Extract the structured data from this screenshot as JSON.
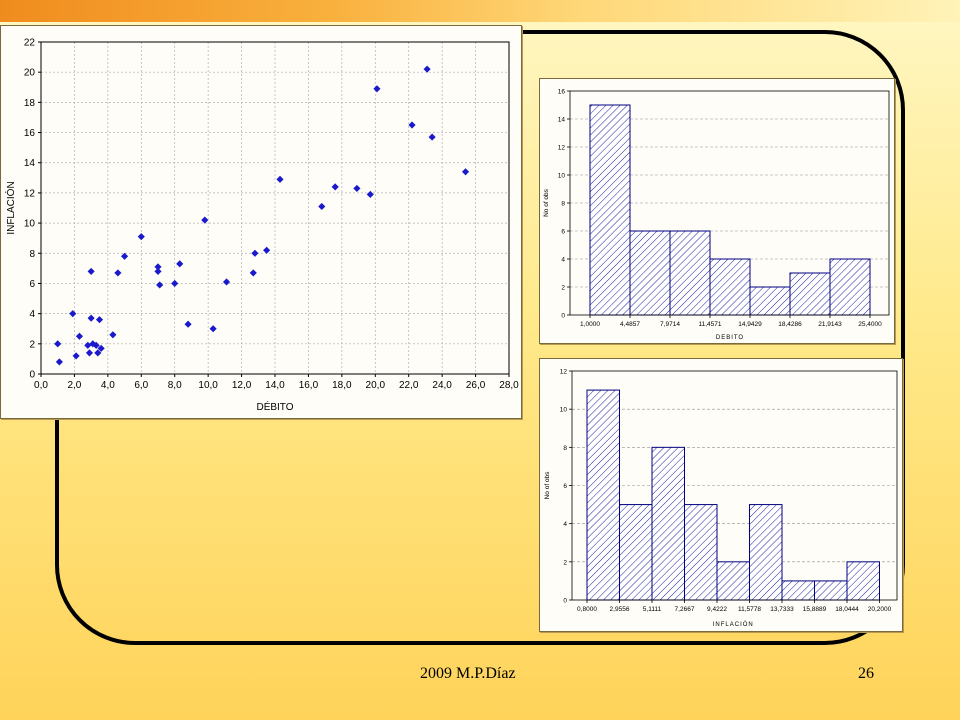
{
  "footer": {
    "left": "2009   M.P.Díaz",
    "page_number": "26"
  },
  "colors": {
    "marker": "#1a1acc",
    "bar_stroke": "#000080",
    "hatch": "#2020a0",
    "grid": "#b0b0b0"
  },
  "chart_data": [
    {
      "type": "scatter",
      "xlabel": "DÉBITO",
      "ylabel": "INFLACIÓN",
      "xlim": [
        0,
        28
      ],
      "ylim": [
        0,
        22
      ],
      "xticks": [
        0,
        2,
        4,
        6,
        8,
        10,
        12,
        14,
        16,
        18,
        20,
        22,
        24,
        26,
        28
      ],
      "xtick_labels": [
        "0,0",
        "2,0",
        "4,0",
        "6,0",
        "8,0",
        "10,0",
        "12,0",
        "14,0",
        "16,0",
        "18,0",
        "20,0",
        "22,0",
        "24,0",
        "26,0",
        "28,0"
      ],
      "yticks": [
        0,
        2,
        4,
        6,
        8,
        10,
        12,
        14,
        16,
        18,
        20,
        22
      ],
      "ytick_labels": [
        "0",
        "2",
        "4",
        "6",
        "8",
        "10",
        "12",
        "14",
        "16",
        "18",
        "20",
        "22"
      ],
      "grid": true,
      "points": [
        [
          1.0,
          2.0
        ],
        [
          1.1,
          0.8
        ],
        [
          1.9,
          4.0
        ],
        [
          2.1,
          1.2
        ],
        [
          2.3,
          2.5
        ],
        [
          2.8,
          1.9
        ],
        [
          2.9,
          1.4
        ],
        [
          3.0,
          6.8
        ],
        [
          3.0,
          3.7
        ],
        [
          3.1,
          2.0
        ],
        [
          3.3,
          1.9
        ],
        [
          3.4,
          1.4
        ],
        [
          3.5,
          3.6
        ],
        [
          3.6,
          1.7
        ],
        [
          4.3,
          2.6
        ],
        [
          4.6,
          6.7
        ],
        [
          5.0,
          7.8
        ],
        [
          6.0,
          9.1
        ],
        [
          7.0,
          7.1
        ],
        [
          7.0,
          6.8
        ],
        [
          7.1,
          5.9
        ],
        [
          8.0,
          6.0
        ],
        [
          8.3,
          7.3
        ],
        [
          8.8,
          3.3
        ],
        [
          9.8,
          10.2
        ],
        [
          10.3,
          3.0
        ],
        [
          11.1,
          6.1
        ],
        [
          12.7,
          6.7
        ],
        [
          12.8,
          8.0
        ],
        [
          13.5,
          8.2
        ],
        [
          14.3,
          12.9
        ],
        [
          16.8,
          11.1
        ],
        [
          17.6,
          12.4
        ],
        [
          18.9,
          12.3
        ],
        [
          19.7,
          11.9
        ],
        [
          20.1,
          18.9
        ],
        [
          22.2,
          16.5
        ],
        [
          23.1,
          20.2
        ],
        [
          23.4,
          15.7
        ],
        [
          25.4,
          13.4
        ]
      ]
    },
    {
      "type": "bar",
      "subtype": "histogram",
      "xlabel": "DEBITO",
      "ylabel": "No of obs",
      "bin_edge_labels": [
        "1,0000",
        "4,4857",
        "7,9714",
        "11,4571",
        "14,9429",
        "18,4286",
        "21,9143",
        "25,4000"
      ],
      "values": [
        15,
        6,
        6,
        4,
        2,
        3,
        4
      ],
      "ylim": [
        0,
        16
      ],
      "yticks": [
        0,
        2,
        4,
        6,
        8,
        10,
        12,
        14,
        16
      ]
    },
    {
      "type": "bar",
      "subtype": "histogram",
      "xlabel": "INFLACIÓN",
      "ylabel": "No of obs",
      "bin_edge_labels": [
        "0,8000",
        "2,9556",
        "5,1111",
        "7,2667",
        "9,4222",
        "11,5778",
        "13,7333",
        "15,8889",
        "18,0444",
        "20,2000"
      ],
      "values": [
        11,
        5,
        8,
        5,
        2,
        5,
        1,
        1,
        2
      ],
      "ylim": [
        0,
        12
      ],
      "yticks": [
        0,
        2,
        4,
        6,
        8,
        10,
        12
      ]
    }
  ]
}
